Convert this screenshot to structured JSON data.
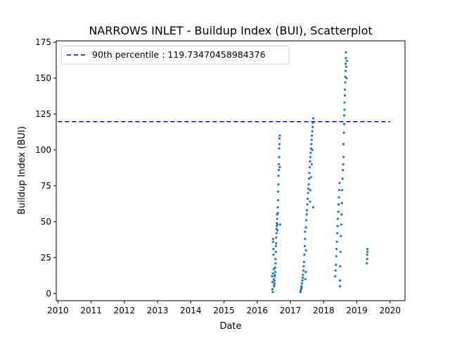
{
  "chart_data": {
    "type": "scatter",
    "title": "NARROWS INLET - Buildup Index (BUI), Scatterplot",
    "xlabel": "Date",
    "ylabel": "Buildup Index (BUI)",
    "xlim": [
      2009.95,
      2020.45
    ],
    "ylim": [
      -5,
      176
    ],
    "x_ticks": [
      "2010",
      "2011",
      "2012",
      "2013",
      "2014",
      "2015",
      "2016",
      "2017",
      "2018",
      "2019",
      "2020"
    ],
    "y_ticks": [
      "0",
      "25",
      "50",
      "75",
      "100",
      "125",
      "150",
      "175"
    ],
    "grid": false,
    "legend_position": "upper left",
    "reference_line": {
      "label": "90th percentile : 119.73470458984376",
      "value": 119.73470458984376,
      "x_range": [
        2010.0,
        2020.0
      ],
      "color": "#0000cc",
      "style": "dashed"
    },
    "series": [
      {
        "color": "#1f77b4",
        "points": [
          [
            2016.45,
            12
          ],
          [
            2016.46,
            8
          ],
          [
            2016.46,
            3
          ],
          [
            2016.47,
            1
          ],
          [
            2016.47,
            14
          ],
          [
            2016.48,
            36
          ],
          [
            2016.48,
            38
          ],
          [
            2016.49,
            31
          ],
          [
            2016.49,
            27
          ],
          [
            2016.5,
            17
          ],
          [
            2016.5,
            10
          ],
          [
            2016.51,
            6
          ],
          [
            2016.51,
            5
          ],
          [
            2016.52,
            9
          ],
          [
            2016.52,
            7
          ],
          [
            2016.53,
            13
          ],
          [
            2016.53,
            12
          ],
          [
            2016.54,
            15
          ],
          [
            2016.54,
            18
          ],
          [
            2016.55,
            21
          ],
          [
            2016.55,
            24
          ],
          [
            2016.56,
            29
          ],
          [
            2016.56,
            33
          ],
          [
            2016.57,
            35
          ],
          [
            2016.57,
            39
          ],
          [
            2016.58,
            42
          ],
          [
            2016.58,
            45
          ],
          [
            2016.59,
            47
          ],
          [
            2016.59,
            49
          ],
          [
            2016.6,
            52
          ],
          [
            2016.6,
            55
          ],
          [
            2016.61,
            48
          ],
          [
            2016.61,
            44
          ],
          [
            2016.62,
            56
          ],
          [
            2016.62,
            60
          ],
          [
            2016.63,
            65
          ],
          [
            2016.63,
            71
          ],
          [
            2016.64,
            76
          ],
          [
            2016.64,
            82
          ],
          [
            2016.65,
            86
          ],
          [
            2016.65,
            90
          ],
          [
            2016.66,
            95
          ],
          [
            2016.66,
            101
          ],
          [
            2016.67,
            104
          ],
          [
            2016.67,
            108
          ],
          [
            2016.68,
            110
          ],
          [
            2016.68,
            88
          ],
          [
            2016.69,
            48
          ],
          [
            2017.3,
            1
          ],
          [
            2017.31,
            2
          ],
          [
            2017.32,
            3
          ],
          [
            2017.33,
            5
          ],
          [
            2017.34,
            4
          ],
          [
            2017.35,
            7
          ],
          [
            2017.36,
            9
          ],
          [
            2017.37,
            11
          ],
          [
            2017.38,
            13
          ],
          [
            2017.39,
            16
          ],
          [
            2017.4,
            19
          ],
          [
            2017.41,
            22
          ],
          [
            2017.42,
            27
          ],
          [
            2017.43,
            33
          ],
          [
            2017.44,
            38
          ],
          [
            2017.44,
            43
          ],
          [
            2017.45,
            10
          ],
          [
            2017.46,
            15
          ],
          [
            2017.47,
            30
          ],
          [
            2017.47,
            46
          ],
          [
            2017.48,
            51
          ],
          [
            2017.49,
            55
          ],
          [
            2017.5,
            58
          ],
          [
            2017.51,
            62
          ],
          [
            2017.52,
            66
          ],
          [
            2017.53,
            70
          ],
          [
            2017.54,
            73
          ],
          [
            2017.55,
            76
          ],
          [
            2017.56,
            80
          ],
          [
            2017.57,
            84
          ],
          [
            2017.58,
            88
          ],
          [
            2017.59,
            92
          ],
          [
            2017.6,
            95
          ],
          [
            2017.61,
            98
          ],
          [
            2017.62,
            101
          ],
          [
            2017.63,
            104
          ],
          [
            2017.64,
            107
          ],
          [
            2017.65,
            110
          ],
          [
            2017.66,
            113
          ],
          [
            2017.67,
            116
          ],
          [
            2017.68,
            119
          ],
          [
            2017.69,
            122
          ],
          [
            2017.59,
            64
          ],
          [
            2017.6,
            72
          ],
          [
            2017.62,
            81
          ],
          [
            2017.64,
            90
          ],
          [
            2017.66,
            100
          ],
          [
            2017.68,
            60
          ],
          [
            2018.35,
            12
          ],
          [
            2018.36,
            16
          ],
          [
            2018.37,
            20
          ],
          [
            2018.38,
            26
          ],
          [
            2018.39,
            31
          ],
          [
            2018.4,
            36
          ],
          [
            2018.41,
            42
          ],
          [
            2018.42,
            47
          ],
          [
            2018.43,
            52
          ],
          [
            2018.44,
            57
          ],
          [
            2018.45,
            62
          ],
          [
            2018.46,
            67
          ],
          [
            2018.47,
            72
          ],
          [
            2018.48,
            77
          ],
          [
            2018.49,
            5
          ],
          [
            2018.49,
            9
          ],
          [
            2018.5,
            19
          ],
          [
            2018.51,
            29
          ],
          [
            2018.52,
            40
          ],
          [
            2018.53,
            48
          ],
          [
            2018.54,
            55
          ],
          [
            2018.55,
            63
          ],
          [
            2018.56,
            72
          ],
          [
            2018.57,
            80
          ],
          [
            2018.58,
            86
          ],
          [
            2018.59,
            90
          ],
          [
            2018.6,
            95
          ],
          [
            2018.6,
            104
          ],
          [
            2018.61,
            112
          ],
          [
            2018.62,
            118
          ],
          [
            2018.62,
            124
          ],
          [
            2018.63,
            128
          ],
          [
            2018.63,
            133
          ],
          [
            2018.64,
            138
          ],
          [
            2018.64,
            142
          ],
          [
            2018.65,
            147
          ],
          [
            2018.65,
            151
          ],
          [
            2018.66,
            155
          ],
          [
            2018.66,
            160
          ],
          [
            2018.67,
            164
          ],
          [
            2018.67,
            168
          ],
          [
            2018.68,
            158
          ],
          [
            2018.69,
            150
          ],
          [
            2018.7,
            162
          ],
          [
            2019.3,
            21
          ],
          [
            2019.31,
            24
          ],
          [
            2019.31,
            27
          ],
          [
            2019.32,
            29
          ],
          [
            2019.32,
            31
          ]
        ]
      }
    ]
  }
}
